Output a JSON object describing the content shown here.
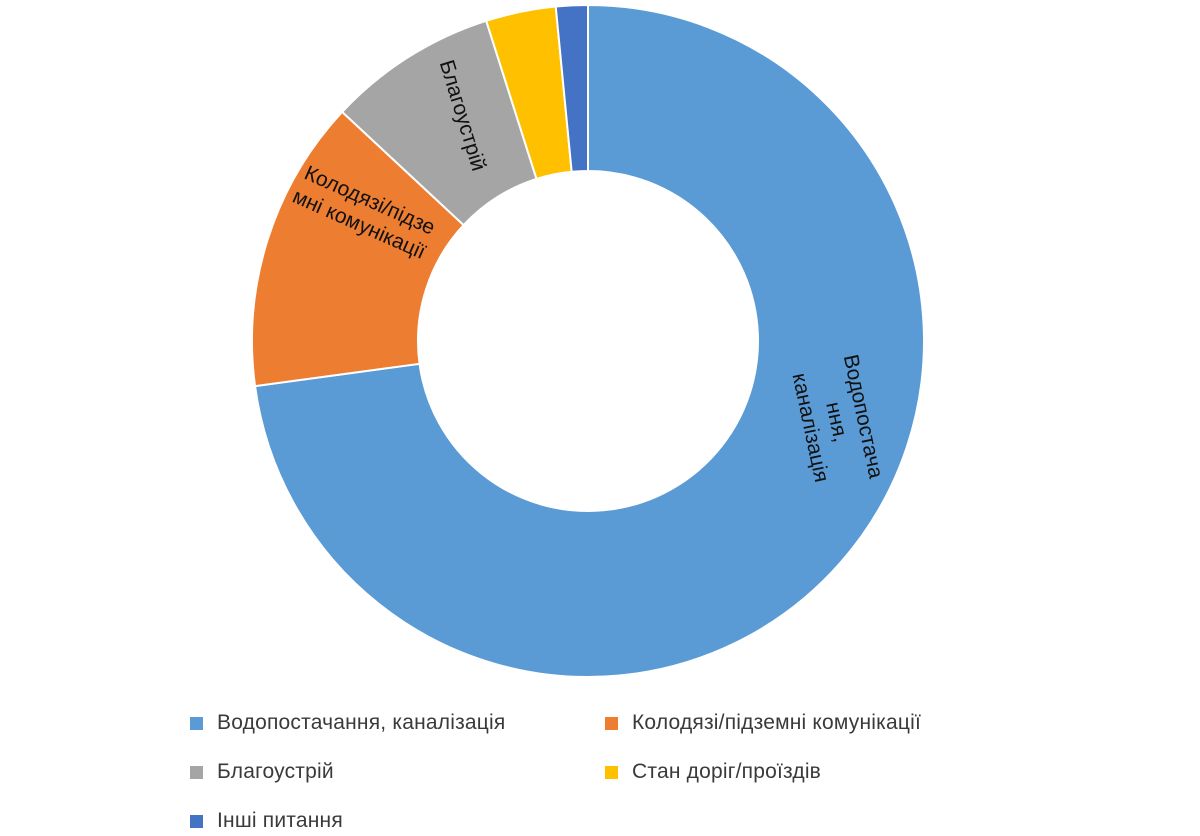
{
  "chart_data": {
    "type": "pie",
    "variant": "donut",
    "start_angle_deg": 0,
    "direction": "clockwise",
    "categories": [
      "Водопостачання, каналізація",
      "Колодязі/підземні комунікації",
      "Благоустрій",
      "Стан доріг/проїздів",
      "Інші питання"
    ],
    "values": [
      71.4,
      13.8,
      8.0,
      3.3,
      1.5
    ],
    "colors": [
      "#5b9bd5",
      "#ed7d31",
      "#a5a5a5",
      "#ffc000",
      "#4472c4"
    ],
    "slice_labels": [
      [
        "Водопостача",
        "ння,",
        "каналізація"
      ],
      [
        "Колодязі/підзе",
        "мні комунікації"
      ],
      [
        "Благоустрій"
      ],
      [],
      []
    ],
    "legend": {
      "position": "bottom",
      "items": [
        "Водопостачання, каналізація",
        "Колодязі/підземні комунікації",
        "Благоустрій",
        "Стан доріг/проїздів",
        "Інші питання"
      ]
    }
  }
}
